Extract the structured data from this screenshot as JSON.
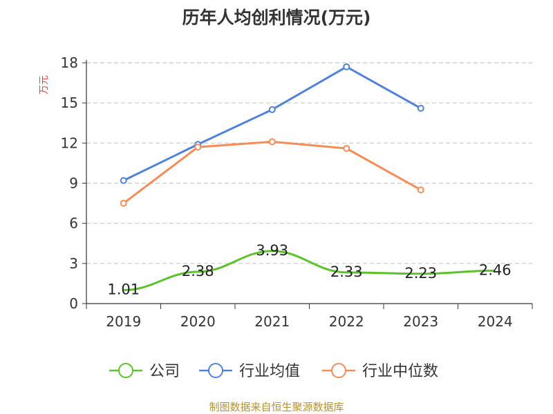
{
  "title": "历年人均创利情况(万元)",
  "source": "制图数据来自恒生聚源数据库",
  "colors": {
    "company": "#5ac328",
    "industry_avg": "#4f82da",
    "industry_median": "#f78b56",
    "grid": "#c8c8c8",
    "axis": "#333333",
    "ylabel": "#e64545"
  },
  "chart_data": {
    "type": "line",
    "title": "历年人均创利情况(万元)",
    "ylabel": "万元",
    "xlabel": "",
    "categories": [
      "2019",
      "2020",
      "2021",
      "2022",
      "2023",
      "2024"
    ],
    "ylim": [
      0,
      18
    ],
    "yticks": [
      0,
      3,
      6,
      9,
      12,
      15,
      18
    ],
    "grid": true,
    "legend_position": "bottom",
    "series": [
      {
        "name": "公司",
        "key": "company",
        "values": [
          1.01,
          2.38,
          3.93,
          2.33,
          2.23,
          2.46
        ],
        "labels": [
          "1.01",
          "2.38",
          "3.93",
          "2.33",
          "2.23",
          "2.46"
        ],
        "markers": false
      },
      {
        "name": "行业均值",
        "key": "industry_avg",
        "values": [
          9.2,
          11.9,
          14.5,
          17.7,
          14.6,
          null
        ],
        "markers": true
      },
      {
        "name": "行业中位数",
        "key": "industry_median",
        "values": [
          7.5,
          11.7,
          12.1,
          11.6,
          8.5,
          null
        ],
        "markers": true
      }
    ]
  }
}
